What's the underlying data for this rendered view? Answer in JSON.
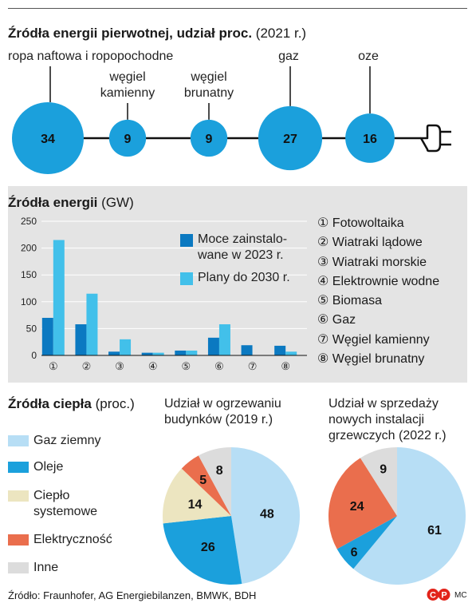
{
  "colors": {
    "blue": "#1ba0dc",
    "light_blue": "#42c0ea",
    "dark_blue": "#0b79c1",
    "pale_blue": "#b7def5",
    "sand": "#ece5c0",
    "red": "#ea6e4d",
    "grey": "#dcdcdc",
    "panel": "#e4e4e4"
  },
  "section1": {
    "title_bold": "Źródła energii pierwotnej, udział proc.",
    "title_rest": "(2021 r.)",
    "plug_icon": "plug-icon"
  },
  "section2": {
    "title_bold": "Źródła energii",
    "title_rest": "(GW)",
    "legend": [
      {
        "label_line1": "Moce zainstalo-",
        "label_line2": "wane w 2023 r."
      },
      {
        "label_line1": "Plany do 2030 r.",
        "label_line2": ""
      }
    ],
    "categories_legend": [
      "① Fotowoltaika",
      "② Wiatraki lądowe",
      "③ Wiatraki morskie",
      "④ Elektrownie wodne",
      "⑤ Biomasa",
      "⑥ Gaz",
      "⑦ Węgiel kamienny",
      "⑧ Węgiel brunatny"
    ]
  },
  "section3": {
    "title_bold": "Źródła ciepła",
    "title_rest": "(proc.)",
    "legend": [
      "Gaz ziemny",
      "Oleje",
      "Ciepło systemowe",
      "Elektryczność",
      "Inne"
    ],
    "legend_ciepło_line1": "Ciepło",
    "legend_ciepło_line2": "systemowe",
    "pie1_title_line1": "Udział w ogrzewaniu",
    "pie1_title_line2": "budynków (2019 r.)",
    "pie2_title_line1": "Udział w sprzedaży",
    "pie2_title_line2": "nowych instalacji",
    "pie2_title_line3": "grzewczych (2022 r.)"
  },
  "footer": {
    "source": "Źródło: Fraunhofer, AG Energiebilanzen, BMWK, BDH",
    "logo_text": "CP",
    "credit": "MC"
  },
  "chart_data": [
    {
      "type": "bubble",
      "title": "Źródła energii pierwotnej, udział proc. (2021 r.)",
      "categories": [
        "ropa naftowa i ropopochodne",
        "węgiel kamienny",
        "węgiel brunatny",
        "gaz",
        "oze"
      ],
      "values": [
        34,
        9,
        9,
        27,
        16
      ]
    },
    {
      "type": "bar",
      "title": "Źródła energii (GW)",
      "categories": [
        "①",
        "②",
        "③",
        "④",
        "⑤",
        "⑥",
        "⑦",
        "⑧"
      ],
      "yticks": [
        0,
        50,
        100,
        150,
        200,
        250
      ],
      "ylim": [
        0,
        250
      ],
      "series": [
        {
          "name": "Moce zainstalowane w 2023 r.",
          "values": [
            70,
            58,
            7,
            5,
            9,
            33,
            19,
            18
          ]
        },
        {
          "name": "Plany do 2030 r.",
          "values": [
            215,
            115,
            30,
            5,
            9,
            58,
            0,
            7
          ]
        }
      ]
    },
    {
      "type": "pie",
      "title": "Udział w ogrzewaniu budynków (2019 r.)",
      "categories": [
        "Gaz ziemny",
        "Oleje",
        "Ciepło systemowe",
        "Elektryczność",
        "Inne"
      ],
      "values": [
        48,
        26,
        14,
        5,
        8
      ]
    },
    {
      "type": "pie",
      "title": "Udział w sprzedaży nowych instalacji grzewczych (2022 r.)",
      "categories": [
        "Gaz ziemny",
        "Oleje",
        "Elektryczność",
        "Inne"
      ],
      "values": [
        61,
        6,
        24,
        9
      ]
    }
  ]
}
